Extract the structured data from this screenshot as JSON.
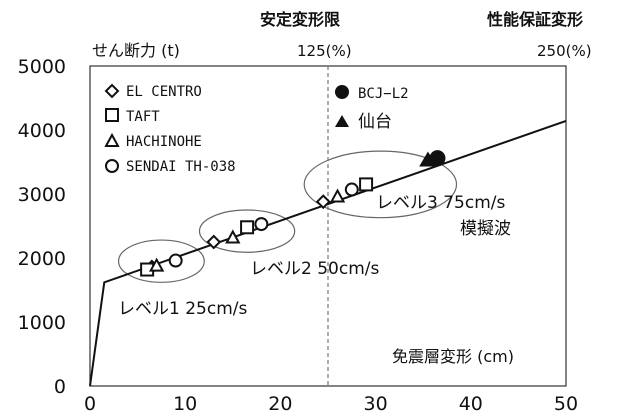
{
  "chart_data": {
    "type": "scatter",
    "ylabel": "せん断力 (t)",
    "xlabel": "免震層変形 (cm)",
    "xlim": [
      0,
      50
    ],
    "ylim": [
      0,
      5000
    ],
    "x_ticks": [
      0,
      10,
      20,
      30,
      40,
      50
    ],
    "y_ticks": [
      0,
      1000,
      2000,
      3000,
      4000,
      5000
    ],
    "curve": {
      "name": "",
      "x": [
        0,
        1.5,
        54
      ],
      "y": [
        0,
        1620,
        4350
      ]
    },
    "reference_lines": [
      {
        "x": 25,
        "label_top": "安定変形限",
        "label_value": "125(%)"
      },
      {
        "x": 50,
        "label_top": "性能保証変形",
        "label_value": "250(%)"
      }
    ],
    "series": [
      {
        "name": "EL CENTRO",
        "marker": "diamond-open",
        "x": [
          6.5,
          13,
          24.5
        ],
        "y": [
          1860,
          2250,
          2880
        ]
      },
      {
        "name": "TAFT",
        "marker": "square-open",
        "x": [
          6,
          16.5,
          29
        ],
        "y": [
          1820,
          2480,
          3150
        ]
      },
      {
        "name": "HACHINOHE",
        "marker": "triangle-open",
        "x": [
          7,
          15,
          26
        ],
        "y": [
          1880,
          2320,
          2960
        ]
      },
      {
        "name": "SENDAI TH-038",
        "marker": "circle-open",
        "x": [
          9,
          18,
          27.5
        ],
        "y": [
          1960,
          2530,
          3070
        ]
      },
      {
        "name": "BCJ-L2",
        "marker": "circle-filled",
        "x": [
          36.5
        ],
        "y": [
          3560
        ]
      },
      {
        "name": "仙台",
        "marker": "triangle-filled",
        "x": [
          35.5
        ],
        "y": [
          3540
        ]
      }
    ],
    "legend_left": [
      "EL CENTRO",
      "TAFT",
      "HACHINOHE",
      "SENDAI TH-038"
    ],
    "legend_right": [
      "BCJ−L2",
      "仙台"
    ],
    "groups": [
      {
        "label": "レベル1 25cm/s",
        "center": [
          7.5,
          1950
        ],
        "rx": 4.5,
        "ry": 330
      },
      {
        "label": "レベル2 50cm/s",
        "center": [
          16.5,
          2420
        ],
        "rx": 5,
        "ry": 330
      },
      {
        "label": "レベル3 75cm/s",
        "center": [
          30.5,
          3150
        ],
        "rx": 8,
        "ry": 520
      }
    ],
    "annotations": {
      "level1": "レベル1  25cm/s",
      "level2": "レベル2  50cm/s",
      "level3": "レベル3  75cm/s",
      "level3_sub": "模擬波"
    }
  }
}
